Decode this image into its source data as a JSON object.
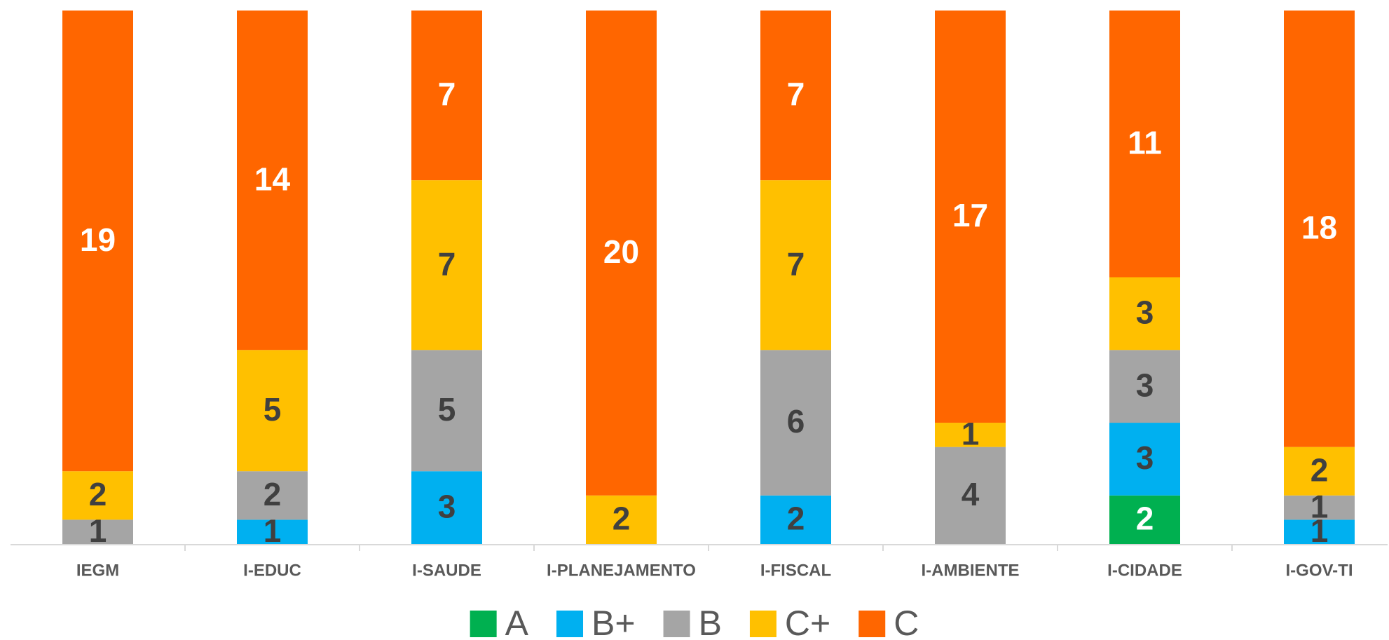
{
  "chart_data": {
    "type": "stacked_bar",
    "categories": [
      "IEGM",
      "I-EDUC",
      "I-SAUDE",
      "I-PLANEJAMENTO",
      "I-FISCAL",
      "I-AMBIENTE",
      "I-CIDADE",
      "I-GOV-TI"
    ],
    "series": [
      {
        "name": "A",
        "color": "#00b050",
        "values": [
          0,
          0,
          0,
          0,
          0,
          0,
          2,
          0
        ]
      },
      {
        "name": "B+",
        "color": "#00b0f0",
        "values": [
          0,
          1,
          3,
          0,
          2,
          0,
          3,
          1
        ]
      },
      {
        "name": "B",
        "color": "#a5a5a5",
        "values": [
          1,
          2,
          5,
          0,
          6,
          4,
          3,
          1
        ]
      },
      {
        "name": "C+",
        "color": "#ffc000",
        "values": [
          2,
          5,
          7,
          2,
          7,
          1,
          3,
          2
        ]
      },
      {
        "name": "C",
        "color": "#ff6600",
        "values": [
          19,
          14,
          7,
          20,
          7,
          17,
          11,
          18
        ]
      }
    ],
    "ylim": [
      0,
      22
    ],
    "legend": "bottom"
  }
}
